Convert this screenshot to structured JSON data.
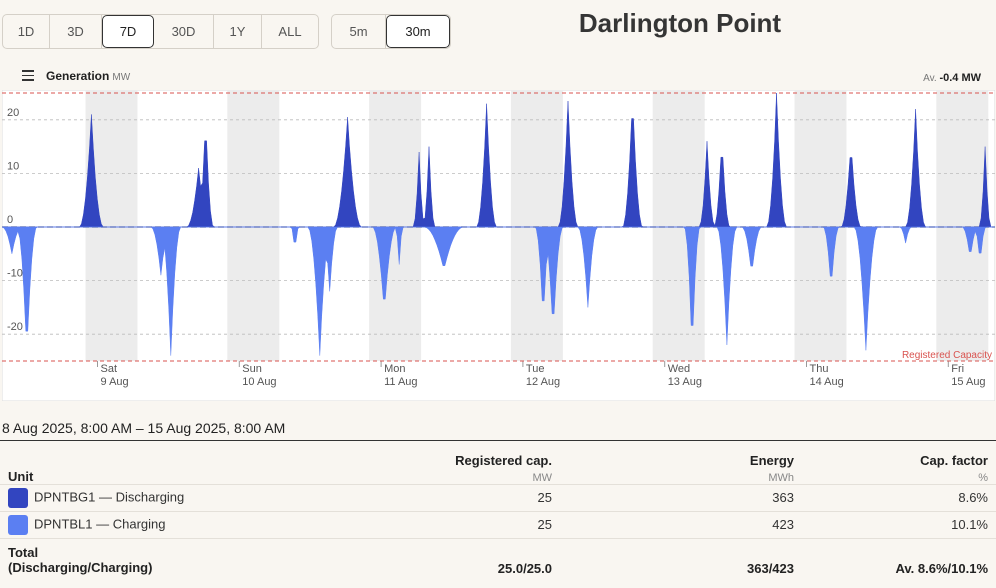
{
  "range_buttons": [
    "1D",
    "3D",
    "7D",
    "30D",
    "1Y",
    "ALL"
  ],
  "range_active": "7D",
  "interval_buttons": [
    "5m",
    "30m"
  ],
  "interval_active": "30m",
  "title": "Darlington Point",
  "chart_header": {
    "label": "Generation",
    "unit": "MW",
    "avg_prefix": "Av.",
    "avg_value": "-0.4 MW"
  },
  "chart_data": {
    "type": "area",
    "y_ticks": [
      "20",
      "10",
      "0",
      "-10",
      "-20"
    ],
    "ylim": [
      -25,
      25
    ],
    "registered_capacity": 25,
    "registered_capacity_label": "Registered Capacity",
    "day_labels": [
      {
        "day": "Sat",
        "date": "9 Aug"
      },
      {
        "day": "Sun",
        "date": "10 Aug"
      },
      {
        "day": "Mon",
        "date": "11 Aug"
      },
      {
        "day": "Tue",
        "date": "12 Aug"
      },
      {
        "day": "Wed",
        "date": "13 Aug"
      },
      {
        "day": "Thu",
        "date": "14 Aug"
      },
      {
        "day": "Fri",
        "date": "15 Aug"
      }
    ],
    "series": [
      {
        "name": "DPNTBG1 — Discharging",
        "color": "#3245c0",
        "peaks": [
          [
            0.09,
            21,
            0.012
          ],
          [
            0.205,
            21,
            0.008
          ],
          [
            0.198,
            11,
            0.012
          ],
          [
            0.348,
            20.5,
            0.014
          ],
          [
            0.42,
            14,
            0.006
          ],
          [
            0.43,
            15,
            0.006
          ],
          [
            0.488,
            23,
            0.01
          ],
          [
            0.57,
            23.5,
            0.01
          ],
          [
            0.635,
            25,
            0.01
          ],
          [
            0.71,
            16,
            0.008
          ],
          [
            0.725,
            17,
            0.008
          ],
          [
            0.78,
            25,
            0.01
          ],
          [
            0.855,
            16,
            0.01
          ],
          [
            0.92,
            22,
            0.01
          ],
          [
            0.99,
            15,
            0.006
          ]
        ]
      },
      {
        "name": "DPNTBL1 — Charging",
        "color": "#5b7ff2",
        "peaks": [
          [
            0.01,
            -5,
            0.01
          ],
          [
            0.025,
            -24,
            0.01
          ],
          [
            0.17,
            -24,
            0.01
          ],
          [
            0.16,
            -9,
            0.01
          ],
          [
            0.295,
            -5,
            0.004
          ],
          [
            0.32,
            -24,
            0.012
          ],
          [
            0.33,
            -12,
            0.008
          ],
          [
            0.385,
            -16,
            0.012
          ],
          [
            0.4,
            -7,
            0.004
          ],
          [
            0.445,
            -8,
            0.02
          ],
          [
            0.545,
            -18,
            0.008
          ],
          [
            0.555,
            -20,
            0.01
          ],
          [
            0.59,
            -15,
            0.01
          ],
          [
            0.695,
            -24,
            0.008
          ],
          [
            0.73,
            -22,
            0.01
          ],
          [
            0.755,
            -9,
            0.01
          ],
          [
            0.835,
            -12,
            0.008
          ],
          [
            0.87,
            -23,
            0.012
          ],
          [
            0.91,
            -3,
            0.006
          ],
          [
            0.975,
            -6,
            0.008
          ],
          [
            0.985,
            -7,
            0.006
          ]
        ]
      }
    ]
  },
  "date_range": "8 Aug 2025, 8:00 AM – 15 Aug 2025, 8:00 AM",
  "table": {
    "headers": {
      "unit": "Unit",
      "reg_cap": "Registered cap.",
      "reg_cap_unit": "MW",
      "energy": "Energy",
      "energy_unit": "MWh",
      "cap_factor": "Cap. factor",
      "cap_factor_unit": "%"
    },
    "rows": [
      {
        "name": "DPNTBG1 — Discharging",
        "color": "#3245c0",
        "reg_cap": "25",
        "energy": "363",
        "cap_factor": "8.6%"
      },
      {
        "name": "DPNTBL1 — Charging",
        "color": "#5b7ff2",
        "reg_cap": "25",
        "energy": "423",
        "cap_factor": "10.1%"
      }
    ],
    "total": {
      "label_line1": "Total",
      "label_line2": "(Discharging/Charging)",
      "reg_cap": "25.0/25.0",
      "energy": "363/423",
      "cap_factor": "Av. 8.6%/10.1%"
    }
  }
}
